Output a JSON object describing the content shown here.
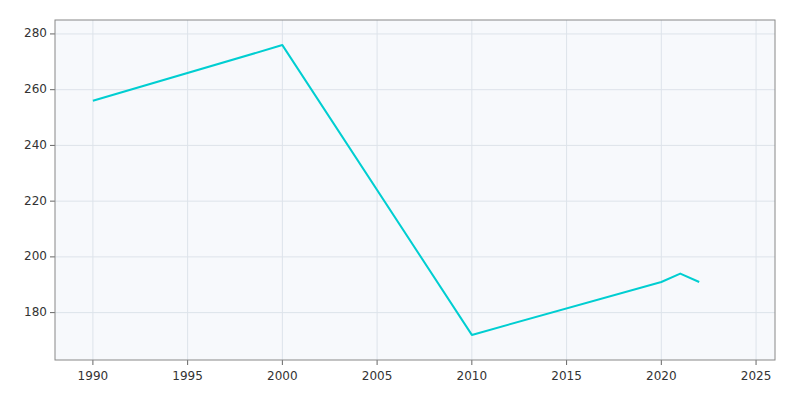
{
  "chart_data": {
    "type": "line",
    "x": [
      1990,
      2000,
      2010,
      2020,
      2021,
      2022
    ],
    "values": [
      256,
      276,
      172,
      191,
      194,
      191
    ],
    "color": "#00CED1",
    "xlim": [
      1988,
      2026
    ],
    "ylim": [
      163,
      285
    ],
    "xticks": [
      1990,
      1995,
      2000,
      2005,
      2010,
      2015,
      2020,
      2025
    ],
    "yticks": [
      180,
      200,
      220,
      240,
      260,
      280
    ],
    "grid": true
  }
}
